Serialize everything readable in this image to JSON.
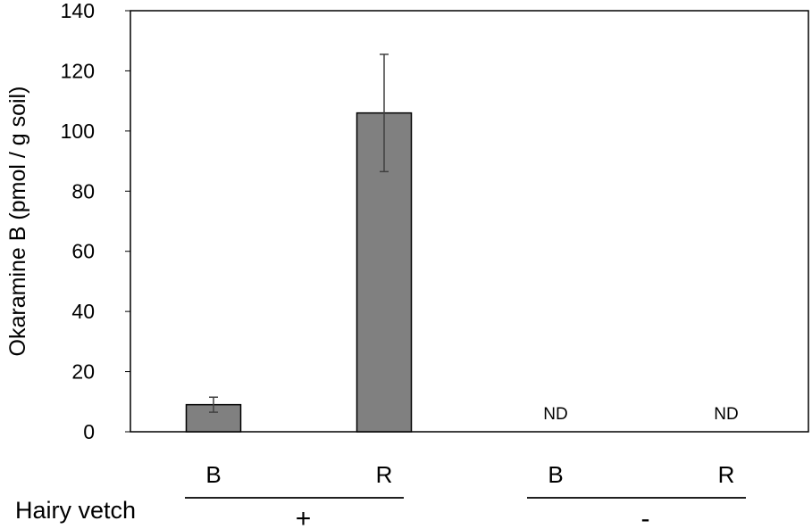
{
  "chart_data": {
    "type": "bar",
    "ylabel": "Okaramine B (pmol / g  soil)",
    "ylim": [
      0,
      140
    ],
    "yticks": [
      0,
      20,
      40,
      60,
      80,
      100,
      120,
      140
    ],
    "categories": [
      "B",
      "R",
      "B",
      "R"
    ],
    "values": [
      9,
      106,
      null,
      null
    ],
    "errors": [
      2.5,
      19.5,
      null,
      null
    ],
    "value_labels": [
      "",
      "",
      "ND",
      "ND"
    ],
    "bar_color": "#808080",
    "groups": [
      {
        "label": "+",
        "categories": [
          0,
          1
        ]
      },
      {
        "label": "-",
        "categories": [
          2,
          3
        ]
      }
    ],
    "group_axis_label": "Hairy vetch",
    "legend": "none",
    "grid": false
  }
}
